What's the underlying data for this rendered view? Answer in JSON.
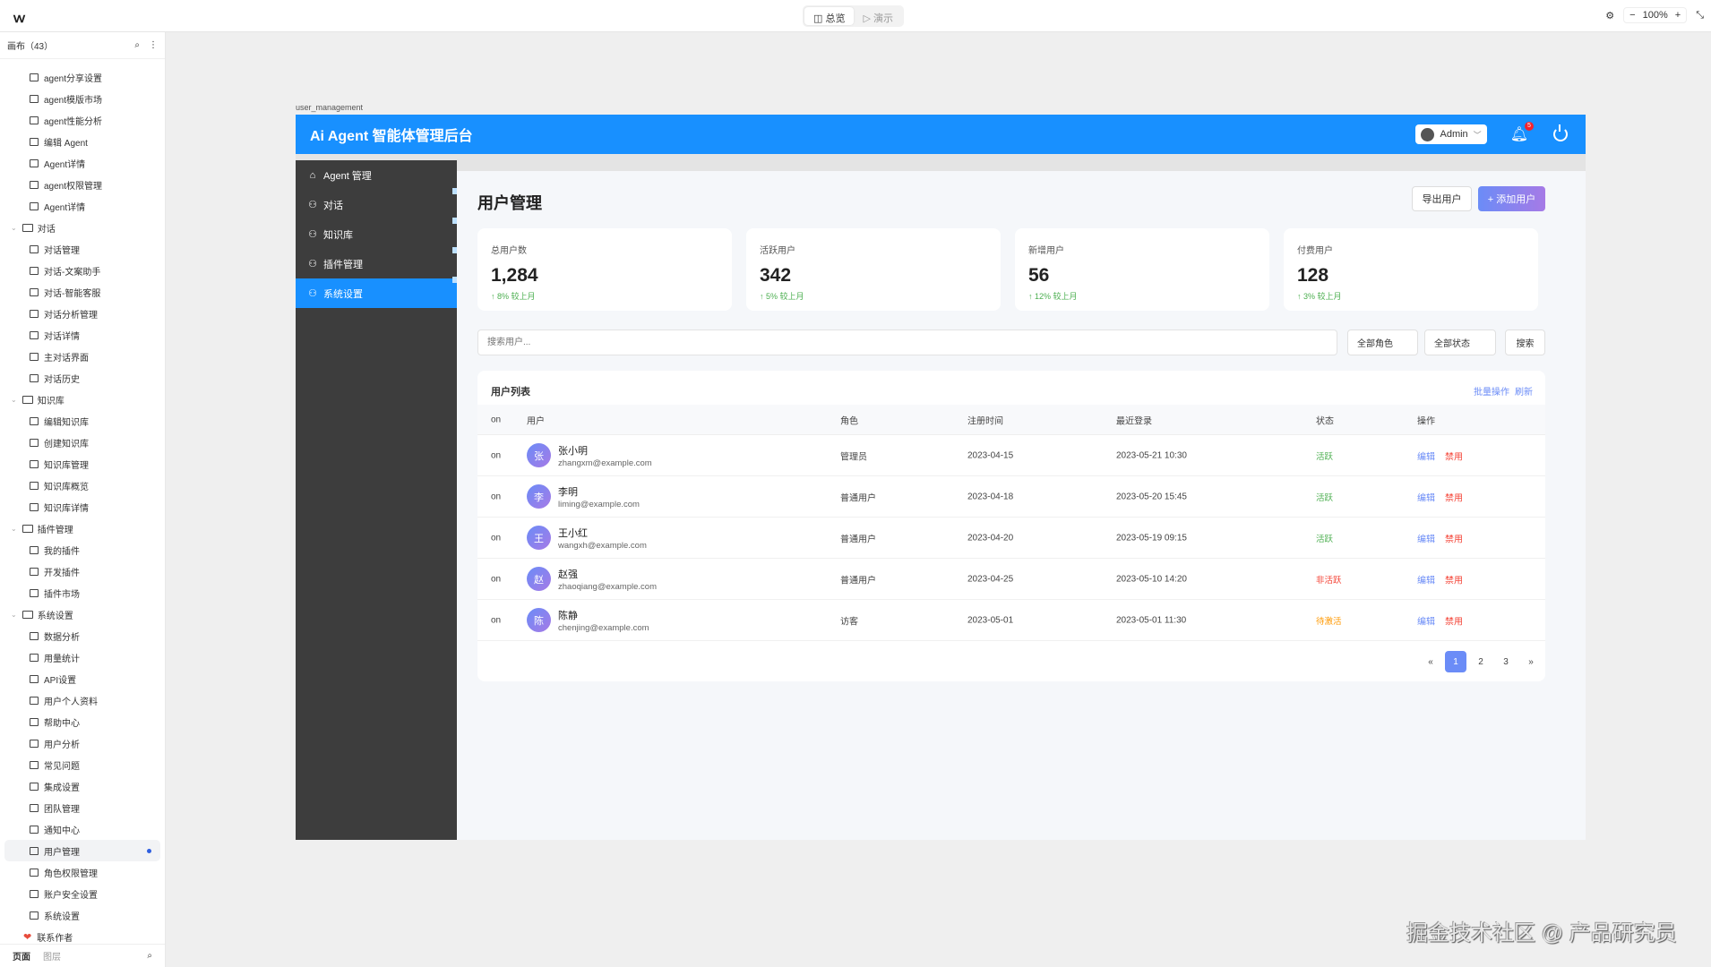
{
  "topbar": {
    "logo": "ｗ",
    "modes": [
      {
        "label": "◫ 总览",
        "active": true
      },
      {
        "label": "▷ 演示",
        "active": false
      }
    ],
    "zoom": "100%"
  },
  "left_panel": {
    "title": "画布（43）",
    "tabs": {
      "pages": "页面",
      "layers": "图层"
    },
    "tree": [
      {
        "label": "agent分享设置",
        "type": "page"
      },
      {
        "label": "agent模版市场",
        "type": "page"
      },
      {
        "label": "agent性能分析",
        "type": "page"
      },
      {
        "label": "编辑 Agent",
        "type": "page"
      },
      {
        "label": "Agent详情",
        "type": "page"
      },
      {
        "label": "agent权限管理",
        "type": "page"
      },
      {
        "label": "Agent详情",
        "type": "page"
      },
      {
        "label": "对话",
        "type": "folder"
      },
      {
        "label": "对话管理",
        "type": "page"
      },
      {
        "label": "对话-文案助手",
        "type": "page"
      },
      {
        "label": "对话-智能客服",
        "type": "page"
      },
      {
        "label": "对话分析管理",
        "type": "page"
      },
      {
        "label": "对话详情",
        "type": "page"
      },
      {
        "label": "主对话界面",
        "type": "page"
      },
      {
        "label": "对话历史",
        "type": "page"
      },
      {
        "label": "知识库",
        "type": "folder"
      },
      {
        "label": "编辑知识库",
        "type": "page"
      },
      {
        "label": "创建知识库",
        "type": "page"
      },
      {
        "label": "知识库管理",
        "type": "page"
      },
      {
        "label": "知识库概览",
        "type": "page"
      },
      {
        "label": "知识库详情",
        "type": "page"
      },
      {
        "label": "插件管理",
        "type": "folder"
      },
      {
        "label": "我的插件",
        "type": "page"
      },
      {
        "label": "开发插件",
        "type": "page"
      },
      {
        "label": "插件市场",
        "type": "page"
      },
      {
        "label": "系统设置",
        "type": "folder"
      },
      {
        "label": "数据分析",
        "type": "page"
      },
      {
        "label": "用量统计",
        "type": "page"
      },
      {
        "label": "API设置",
        "type": "page"
      },
      {
        "label": "用户个人资料",
        "type": "page"
      },
      {
        "label": "帮助中心",
        "type": "page"
      },
      {
        "label": "用户分析",
        "type": "page"
      },
      {
        "label": "常见问题",
        "type": "page"
      },
      {
        "label": "集成设置",
        "type": "page"
      },
      {
        "label": "团队管理",
        "type": "page"
      },
      {
        "label": "通知中心",
        "type": "page"
      },
      {
        "label": "用户管理",
        "type": "page",
        "active": true
      },
      {
        "label": "角色权限管理",
        "type": "page"
      },
      {
        "label": "账户安全设置",
        "type": "page"
      },
      {
        "label": "系统设置",
        "type": "page"
      },
      {
        "label": "联系作者",
        "type": "contact"
      }
    ]
  },
  "frame_label": "user_management",
  "app": {
    "title": "Ai Agent 智能体管理后台",
    "user": "Admin",
    "notifications": "5",
    "accent": "#1890ff",
    "nav": [
      {
        "label": "Agent 管理",
        "icon": "home-icon"
      },
      {
        "label": "对话",
        "icon": "user-icon"
      },
      {
        "label": "知识库",
        "icon": "user-icon"
      },
      {
        "label": "插件管理",
        "icon": "user-icon"
      },
      {
        "label": "系统设置",
        "icon": "user-icon",
        "active": true
      }
    ],
    "page_title": "用户管理",
    "export_label": "导出用户",
    "add_label": "+ 添加用户",
    "stats": [
      {
        "label": "总用户数",
        "value": "1,284",
        "change": "↑ 8% 较上月"
      },
      {
        "label": "活跃用户",
        "value": "342",
        "change": "↑ 5% 较上月"
      },
      {
        "label": "新增用户",
        "value": "56",
        "change": "↑ 12% 较上月"
      },
      {
        "label": "付费用户",
        "value": "128",
        "change": "↑ 3% 较上月"
      }
    ],
    "search_placeholder": "搜索用户...",
    "role_filter": "全部角色",
    "status_filter": "全部状态",
    "search_button": "搜索",
    "table": {
      "title": "用户列表",
      "batch": "批量操作",
      "refresh": "刷新",
      "headers": [
        "on",
        "用户",
        "角色",
        "注册时间",
        "最近登录",
        "状态",
        "操作"
      ],
      "rows": [
        {
          "check": "on",
          "avatar": "张",
          "name": "张小明",
          "email": "zhangxm@example.com",
          "role": "管理员",
          "registered": "2023-04-15",
          "last_login": "2023-05-21 10:30",
          "status": "活跃",
          "status_color": "#4caf50",
          "edit": "编辑",
          "disable": "禁用"
        },
        {
          "check": "on",
          "avatar": "李",
          "name": "李明",
          "email": "liming@example.com",
          "role": "普通用户",
          "registered": "2023-04-18",
          "last_login": "2023-05-20 15:45",
          "status": "活跃",
          "status_color": "#4caf50",
          "edit": "编辑",
          "disable": "禁用"
        },
        {
          "check": "on",
          "avatar": "王",
          "name": "王小红",
          "email": "wangxh@example.com",
          "role": "普通用户",
          "registered": "2023-04-20",
          "last_login": "2023-05-19 09:15",
          "status": "活跃",
          "status_color": "#4caf50",
          "edit": "编辑",
          "disable": "禁用"
        },
        {
          "check": "on",
          "avatar": "赵",
          "name": "赵强",
          "email": "zhaoqiang@example.com",
          "role": "普通用户",
          "registered": "2023-04-25",
          "last_login": "2023-05-10 14:20",
          "status": "非活跃",
          "status_color": "#f44336",
          "edit": "编辑",
          "disable": "禁用"
        },
        {
          "check": "on",
          "avatar": "陈",
          "name": "陈静",
          "email": "chenjing@example.com",
          "role": "访客",
          "registered": "2023-05-01",
          "last_login": "2023-05-01 11:30",
          "status": "待激活",
          "status_color": "#ff9800",
          "edit": "编辑",
          "disable": "禁用"
        }
      ]
    },
    "pagination": {
      "prev": "«",
      "pages": [
        "1",
        "2",
        "3"
      ],
      "current": "1",
      "next": "»"
    }
  },
  "watermark": "掘金技术社区 @ 产品研究员"
}
